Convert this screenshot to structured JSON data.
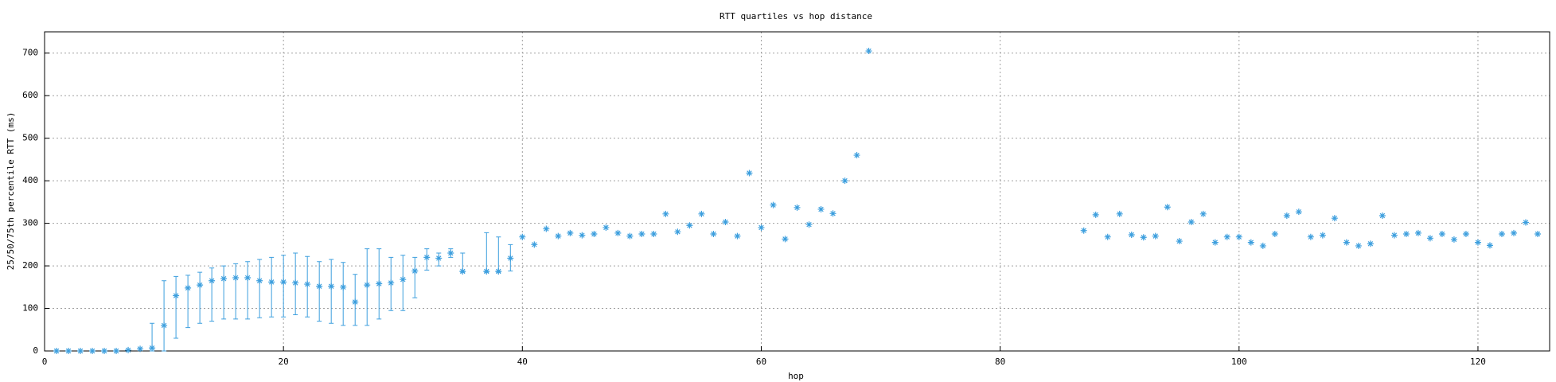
{
  "chart_data": {
    "type": "scatter",
    "title": "RTT quartiles vs hop distance",
    "x_label": "hop",
    "y_label": "25/50/75th percentile RTT (ms)",
    "xlim": [
      0,
      126
    ],
    "ylim": [
      0,
      750
    ],
    "xticks": [
      0,
      20,
      40,
      60,
      80,
      100,
      120
    ],
    "yticks": [
      0,
      100,
      200,
      300,
      400,
      500,
      600,
      700
    ],
    "grid": true,
    "series": [
      {
        "color": "#3d9fde",
        "x": [
          1,
          2,
          3,
          4,
          5,
          6,
          7,
          8,
          9,
          10,
          11,
          12,
          13,
          14,
          15,
          16,
          17,
          18,
          19,
          20,
          21,
          22,
          23,
          24,
          25,
          26,
          27,
          28,
          29,
          30,
          31,
          32,
          33,
          34,
          35,
          37,
          38,
          39,
          40,
          41,
          42,
          43,
          44,
          45,
          46,
          47,
          48,
          49,
          50,
          51,
          52,
          53,
          54,
          55,
          56,
          57,
          58,
          59,
          60,
          61,
          62,
          63,
          64,
          65,
          66,
          67,
          68,
          69,
          87,
          88,
          89,
          90,
          91,
          92,
          93,
          94,
          95,
          96,
          97,
          98,
          99,
          100,
          101,
          102,
          103,
          104,
          105,
          106,
          107,
          108,
          109,
          110,
          111,
          112,
          113,
          114,
          115,
          116,
          117,
          118,
          119,
          120,
          121,
          122,
          123,
          124,
          125
        ],
        "values": [
          0,
          0,
          0,
          0,
          0,
          0,
          2,
          5,
          7,
          60,
          130,
          148,
          155,
          165,
          170,
          172,
          172,
          165,
          162,
          162,
          160,
          157,
          152,
          152,
          150,
          115,
          155,
          158,
          160,
          168,
          188,
          220,
          218,
          230,
          187,
          187,
          187,
          218,
          268,
          250,
          287,
          270,
          277,
          272,
          275,
          290,
          277,
          270,
          275,
          275,
          322,
          280,
          295,
          322,
          275,
          303,
          270,
          418,
          290,
          343,
          263,
          337,
          297,
          333,
          323,
          400,
          460,
          705,
          283,
          320,
          268,
          322,
          273,
          267,
          270,
          338,
          258,
          303,
          322,
          255,
          268,
          268,
          255,
          247,
          275,
          318,
          327,
          268,
          272,
          312,
          255,
          247,
          252,
          318,
          272,
          275,
          277,
          265,
          275,
          262,
          275,
          255,
          248,
          275,
          277,
          302,
          275
        ],
        "low": [
          null,
          null,
          null,
          null,
          null,
          null,
          null,
          null,
          0,
          0,
          30,
          55,
          65,
          70,
          75,
          75,
          75,
          78,
          80,
          80,
          85,
          80,
          70,
          65,
          60,
          60,
          60,
          75,
          95,
          95,
          125,
          190,
          200,
          220,
          185,
          185,
          185,
          188,
          null,
          null,
          null,
          null,
          null,
          null,
          null,
          null,
          null,
          null,
          null,
          null,
          null,
          null,
          null,
          null,
          null,
          null,
          null,
          null,
          null,
          null,
          null,
          null,
          null,
          null,
          null,
          null,
          null,
          null,
          null,
          null,
          null,
          null,
          null,
          null,
          null,
          null,
          null,
          null,
          null,
          null,
          null,
          null,
          null,
          null,
          null,
          null,
          null,
          null,
          null,
          null,
          null,
          null,
          null,
          null,
          null,
          null,
          null,
          null,
          null,
          null,
          null,
          null,
          null,
          null,
          null,
          null,
          null
        ],
        "high": [
          null,
          null,
          null,
          null,
          null,
          null,
          null,
          null,
          65,
          165,
          175,
          178,
          185,
          195,
          200,
          205,
          210,
          215,
          220,
          225,
          230,
          222,
          210,
          215,
          208,
          180,
          240,
          240,
          220,
          225,
          220,
          240,
          230,
          240,
          230,
          278,
          268,
          250,
          null,
          null,
          null,
          null,
          null,
          null,
          null,
          null,
          null,
          null,
          null,
          null,
          null,
          null,
          null,
          null,
          null,
          null,
          null,
          null,
          null,
          null,
          null,
          null,
          null,
          null,
          null,
          null,
          null,
          null,
          null,
          null,
          null,
          null,
          null,
          null,
          null,
          null,
          null,
          null,
          null,
          null,
          null,
          null,
          null,
          null,
          null,
          null,
          null,
          null,
          null,
          null,
          null,
          null,
          null,
          null,
          null,
          null,
          null,
          null,
          null,
          null,
          null,
          null,
          null,
          null,
          null,
          null,
          null
        ]
      }
    ]
  }
}
